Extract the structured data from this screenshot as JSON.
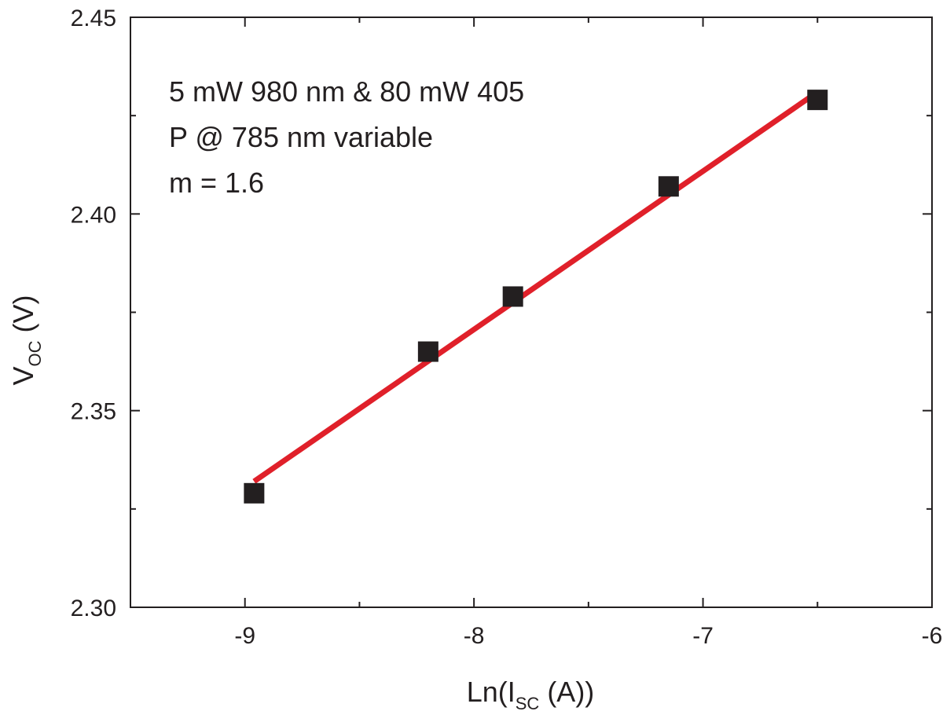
{
  "chart_data": {
    "type": "scatter",
    "xlabel": {
      "prefix": "Ln(I",
      "sub": "SC",
      "suffix": " (A))"
    },
    "ylabel": {
      "prefix": "V",
      "sub": "OC",
      "suffix": " (V)"
    },
    "xlim": [
      -9.5,
      -6
    ],
    "ylim": [
      2.3,
      2.45
    ],
    "x_ticks": [
      -9,
      -8,
      -7,
      -6
    ],
    "x_tick_labels": [
      "-9",
      "-8",
      "-7",
      "-6"
    ],
    "y_ticks": [
      2.3,
      2.35,
      2.4,
      2.45
    ],
    "y_tick_labels": [
      "2.30",
      "2.35",
      "2.40",
      "2.45"
    ],
    "grid": false,
    "annotations": [
      "5 mW 980 nm & 80 mW 405",
      "P @ 785 nm variable",
      "m = 1.6"
    ],
    "points": [
      {
        "x": -8.96,
        "y": 2.329
      },
      {
        "x": -8.2,
        "y": 2.365
      },
      {
        "x": -7.83,
        "y": 2.379
      },
      {
        "x": -7.15,
        "y": 2.407
      },
      {
        "x": -6.5,
        "y": 2.429
      }
    ],
    "fit_line": {
      "x": [
        -8.96,
        -6.5
      ],
      "y": [
        2.332,
        2.431
      ]
    },
    "colors": {
      "points": "#231f20",
      "fit": "#e0202a",
      "axis": "#231f20"
    }
  }
}
